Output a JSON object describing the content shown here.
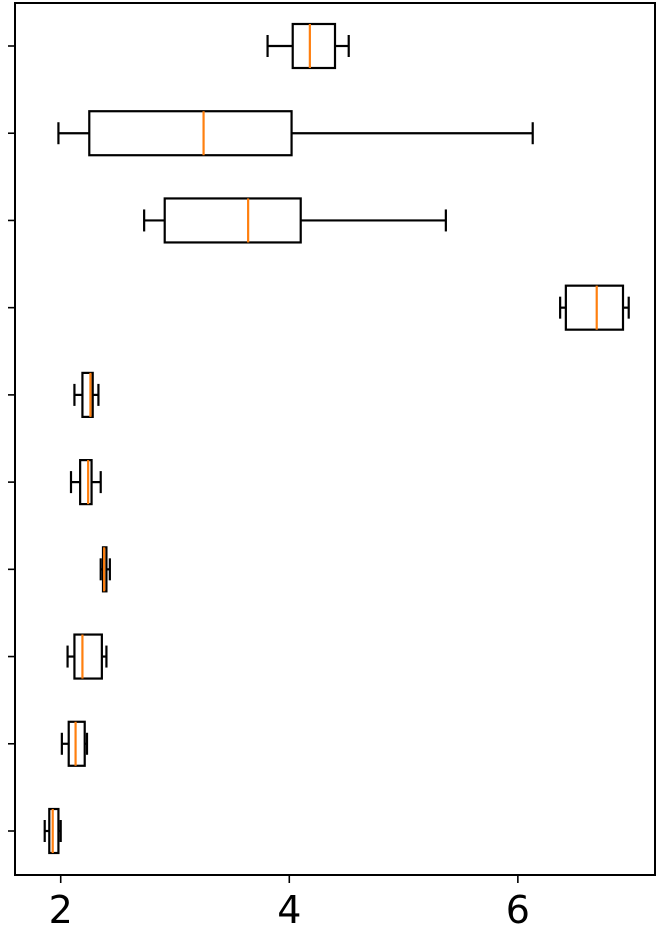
{
  "chart_data": {
    "type": "boxplot",
    "orientation": "horizontal",
    "xlim": [
      1.6,
      7.2
    ],
    "x_ticks": [
      2,
      4,
      6
    ],
    "x_tick_labels": [
      "2",
      "4",
      "6"
    ],
    "y_tick_count": 10,
    "y_tick_labels": [],
    "title": "",
    "xlabel": "",
    "ylabel": "",
    "grid": false,
    "box_color": "#000000",
    "median_color": "#ff7f0e",
    "boxes": [
      {
        "whisker_low": 1.86,
        "q1": 1.9,
        "median": 1.93,
        "q3": 1.98,
        "whisker_high": 2.0
      },
      {
        "whisker_low": 2.01,
        "q1": 2.07,
        "median": 2.13,
        "q3": 2.21,
        "whisker_high": 2.23
      },
      {
        "whisker_low": 2.06,
        "q1": 2.12,
        "median": 2.19,
        "q3": 2.36,
        "whisker_high": 2.4
      },
      {
        "whisker_low": 2.35,
        "q1": 2.37,
        "median": 2.38,
        "q3": 2.4,
        "whisker_high": 2.43
      },
      {
        "whisker_low": 2.09,
        "q1": 2.17,
        "median": 2.24,
        "q3": 2.27,
        "whisker_high": 2.35
      },
      {
        "whisker_low": 2.12,
        "q1": 2.19,
        "median": 2.26,
        "q3": 2.28,
        "whisker_high": 2.33
      },
      {
        "whisker_low": 6.37,
        "q1": 6.42,
        "median": 6.69,
        "q3": 6.92,
        "whisker_high": 6.97
      },
      {
        "whisker_low": 2.73,
        "q1": 2.91,
        "median": 3.64,
        "q3": 4.1,
        "whisker_high": 5.37
      },
      {
        "whisker_low": 1.98,
        "q1": 2.25,
        "median": 3.25,
        "q3": 4.02,
        "whisker_high": 6.13
      },
      {
        "whisker_low": 3.81,
        "q1": 4.03,
        "median": 4.18,
        "q3": 4.4,
        "whisker_high": 4.52
      }
    ]
  }
}
